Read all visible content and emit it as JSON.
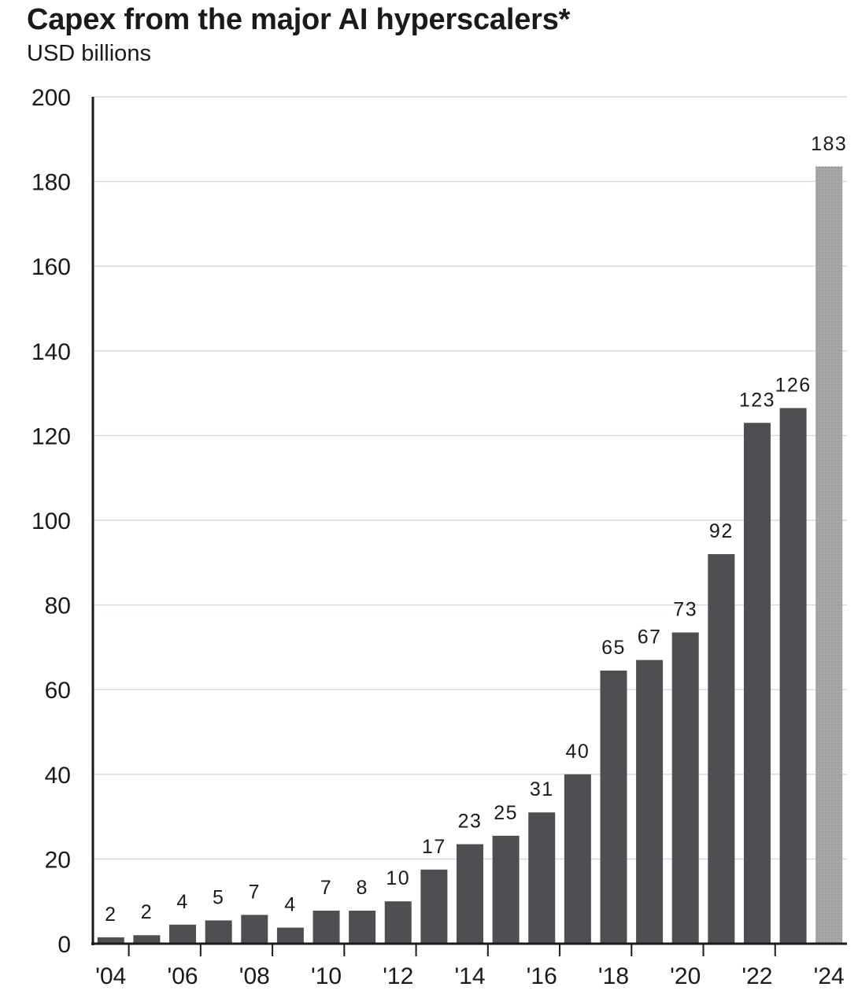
{
  "title": "Capex from the major AI hyperscalers*",
  "subtitle": "USD billions",
  "colors": {
    "bar": "#4d4f52",
    "bar_estimate": "#a7a7a9",
    "grid": "#cfdae2",
    "axis": "#1a1a1a",
    "text": "#1a1a1a"
  },
  "chart_data": {
    "type": "bar",
    "title": "Capex from the major AI hyperscalers*",
    "ylabel": "USD billions",
    "xlabel": "",
    "ylim": [
      0,
      200
    ],
    "yticks": [
      0,
      20,
      40,
      60,
      80,
      100,
      120,
      140,
      160,
      180,
      200
    ],
    "categories": [
      "2004",
      "2005",
      "2006",
      "2007",
      "2008",
      "2009",
      "2010",
      "2011",
      "2012",
      "2013",
      "2014",
      "2015",
      "2016",
      "2017",
      "2018",
      "2019",
      "2020",
      "2021",
      "2022",
      "2023",
      "2024"
    ],
    "values": [
      2,
      2,
      4,
      5,
      7,
      4,
      7,
      8,
      10,
      17,
      23,
      25,
      31,
      40,
      65,
      67,
      73,
      92,
      123,
      126,
      183
    ],
    "plotted_values": [
      1.5,
      2,
      4.5,
      5.5,
      6.8,
      3.8,
      7.8,
      7.8,
      10,
      17.5,
      23.5,
      25.5,
      31,
      40,
      64.5,
      67,
      73.5,
      92,
      123,
      126.5,
      183.5
    ],
    "xtick_labels": [
      "'04",
      "",
      "'06",
      "",
      "'08",
      "",
      "'10",
      "",
      "'12",
      "",
      "'14",
      "",
      "'16",
      "",
      "'18",
      "",
      "'20",
      "",
      "'22",
      "",
      "'24"
    ],
    "highlight": {
      "index": 20,
      "style": "estimate"
    },
    "grid": true,
    "legend": "none"
  }
}
